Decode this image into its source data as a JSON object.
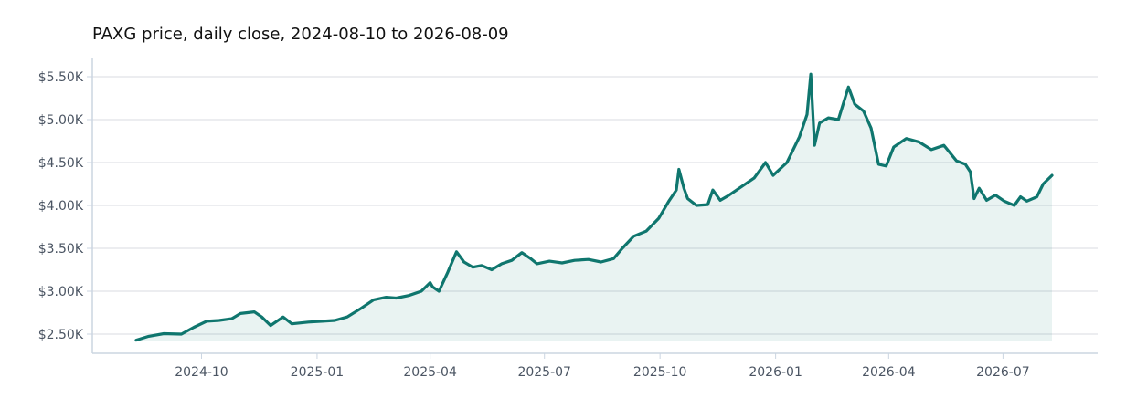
{
  "chart_data": {
    "type": "area",
    "title": "PAXG price, daily close, 2024-08-10 to 2026-08-09",
    "xlabel": "",
    "ylabel": "",
    "x_range": [
      "2024-08-10",
      "2026-08-09"
    ],
    "ylim": [
      2420,
      5520
    ],
    "grid": "horizontal",
    "legend": "none",
    "colors": {
      "line": "#0f766e",
      "fill": "#0f766e",
      "grid": "#e5e7eb",
      "axis": "#cbd5e1",
      "text": "#4b5563"
    },
    "y_ticks": [
      {
        "value": 2500,
        "label": "$2.50K"
      },
      {
        "value": 3000,
        "label": "$3.00K"
      },
      {
        "value": 3500,
        "label": "$3.50K"
      },
      {
        "value": 4000,
        "label": "$4.00K"
      },
      {
        "value": 4500,
        "label": "$4.50K"
      },
      {
        "value": 5000,
        "label": "$5.00K"
      },
      {
        "value": 5500,
        "label": "$5.50K"
      }
    ],
    "x_ticks": [
      {
        "date": "2024-10-01",
        "label": "2024-10"
      },
      {
        "date": "2025-01-01",
        "label": "2025-01"
      },
      {
        "date": "2025-04-01",
        "label": "2025-04"
      },
      {
        "date": "2025-07-01",
        "label": "2025-07"
      },
      {
        "date": "2025-10-01",
        "label": "2025-10"
      },
      {
        "date": "2026-01-01",
        "label": "2026-01"
      },
      {
        "date": "2026-04-01",
        "label": "2026-04"
      },
      {
        "date": "2026-07-01",
        "label": "2026-07"
      }
    ],
    "series": [
      {
        "points": [
          [
            "2024-08-10",
            2430
          ],
          [
            "2024-08-20",
            2475
          ],
          [
            "2024-09-01",
            2505
          ],
          [
            "2024-09-15",
            2500
          ],
          [
            "2024-09-25",
            2580
          ],
          [
            "2024-10-05",
            2650
          ],
          [
            "2024-10-15",
            2660
          ],
          [
            "2024-10-25",
            2680
          ],
          [
            "2024-11-01",
            2740
          ],
          [
            "2024-11-12",
            2760
          ],
          [
            "2024-11-18",
            2700
          ],
          [
            "2024-11-25",
            2600
          ],
          [
            "2024-12-05",
            2700
          ],
          [
            "2024-12-12",
            2620
          ],
          [
            "2024-12-25",
            2640
          ],
          [
            "2025-01-05",
            2650
          ],
          [
            "2025-01-15",
            2660
          ],
          [
            "2025-01-25",
            2700
          ],
          [
            "2025-02-05",
            2800
          ],
          [
            "2025-02-15",
            2900
          ],
          [
            "2025-02-25",
            2930
          ],
          [
            "2025-03-05",
            2920
          ],
          [
            "2025-03-15",
            2950
          ],
          [
            "2025-03-25",
            3000
          ],
          [
            "2025-04-01",
            3100
          ],
          [
            "2025-04-03",
            3050
          ],
          [
            "2025-04-08",
            3000
          ],
          [
            "2025-04-15",
            3220
          ],
          [
            "2025-04-22",
            3460
          ],
          [
            "2025-04-28",
            3340
          ],
          [
            "2025-05-05",
            3280
          ],
          [
            "2025-05-12",
            3300
          ],
          [
            "2025-05-20",
            3250
          ],
          [
            "2025-05-28",
            3320
          ],
          [
            "2025-06-05",
            3360
          ],
          [
            "2025-06-13",
            3450
          ],
          [
            "2025-06-20",
            3380
          ],
          [
            "2025-06-25",
            3320
          ],
          [
            "2025-07-05",
            3350
          ],
          [
            "2025-07-15",
            3330
          ],
          [
            "2025-07-25",
            3360
          ],
          [
            "2025-08-05",
            3370
          ],
          [
            "2025-08-15",
            3340
          ],
          [
            "2025-08-25",
            3380
          ],
          [
            "2025-09-01",
            3500
          ],
          [
            "2025-09-10",
            3640
          ],
          [
            "2025-09-20",
            3700
          ],
          [
            "2025-09-30",
            3850
          ],
          [
            "2025-10-08",
            4050
          ],
          [
            "2025-10-14",
            4180
          ],
          [
            "2025-10-16",
            4420
          ],
          [
            "2025-10-20",
            4200
          ],
          [
            "2025-10-23",
            4080
          ],
          [
            "2025-10-30",
            4000
          ],
          [
            "2025-11-08",
            4010
          ],
          [
            "2025-11-12",
            4180
          ],
          [
            "2025-11-18",
            4060
          ],
          [
            "2025-11-25",
            4120
          ],
          [
            "2025-12-05",
            4220
          ],
          [
            "2025-12-15",
            4320
          ],
          [
            "2025-12-24",
            4500
          ],
          [
            "2025-12-30",
            4350
          ],
          [
            "2026-01-10",
            4500
          ],
          [
            "2026-01-20",
            4800
          ],
          [
            "2026-01-26",
            5060
          ],
          [
            "2026-01-29",
            5530
          ],
          [
            "2026-02-01",
            4700
          ],
          [
            "2026-02-05",
            4960
          ],
          [
            "2026-02-12",
            5020
          ],
          [
            "2026-02-20",
            5000
          ],
          [
            "2026-02-28",
            5380
          ],
          [
            "2026-03-05",
            5180
          ],
          [
            "2026-03-12",
            5100
          ],
          [
            "2026-03-18",
            4900
          ],
          [
            "2026-03-24",
            4480
          ],
          [
            "2026-03-30",
            4460
          ],
          [
            "2026-04-05",
            4680
          ],
          [
            "2026-04-15",
            4780
          ],
          [
            "2026-04-25",
            4740
          ],
          [
            "2026-05-05",
            4650
          ],
          [
            "2026-05-15",
            4700
          ],
          [
            "2026-05-25",
            4520
          ],
          [
            "2026-06-01",
            4480
          ],
          [
            "2026-06-05",
            4390
          ],
          [
            "2026-06-08",
            4080
          ],
          [
            "2026-06-12",
            4200
          ],
          [
            "2026-06-18",
            4060
          ],
          [
            "2026-06-25",
            4120
          ],
          [
            "2026-07-02",
            4050
          ],
          [
            "2026-07-10",
            4000
          ],
          [
            "2026-07-15",
            4100
          ],
          [
            "2026-07-20",
            4050
          ],
          [
            "2026-07-28",
            4100
          ],
          [
            "2026-08-02",
            4250
          ],
          [
            "2026-08-09",
            4350
          ]
        ]
      }
    ]
  }
}
